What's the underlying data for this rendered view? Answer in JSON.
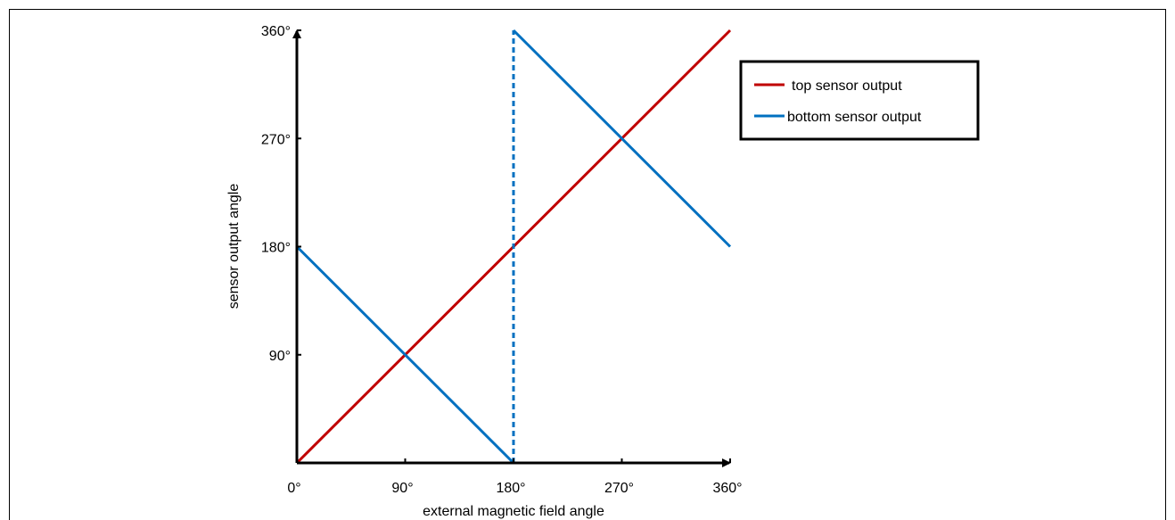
{
  "chart_data": {
    "type": "line",
    "xlabel": "external magnetic field angle",
    "ylabel": "sensor output angle",
    "xlim": [
      0,
      360
    ],
    "ylim": [
      0,
      360
    ],
    "x_ticks": [
      0,
      90,
      180,
      270,
      360
    ],
    "y_ticks": [
      90,
      180,
      270,
      360
    ],
    "x_tick_labels": [
      "0°",
      "90°",
      "180°",
      "270°",
      "360°"
    ],
    "y_tick_labels": [
      "90°",
      "180°",
      "270°",
      "360°"
    ],
    "grid": false,
    "legend_position": "top-right",
    "series": [
      {
        "name": "top sensor output",
        "color": "#c00000",
        "points": [
          [
            0,
            0
          ],
          [
            360,
            360
          ]
        ]
      },
      {
        "name": "bottom sensor output",
        "color": "#0070c0",
        "points": [
          [
            0,
            180
          ],
          [
            180,
            0
          ],
          [
            180,
            360
          ],
          [
            360,
            180
          ]
        ],
        "dashed_segments": [
          1
        ]
      }
    ]
  }
}
